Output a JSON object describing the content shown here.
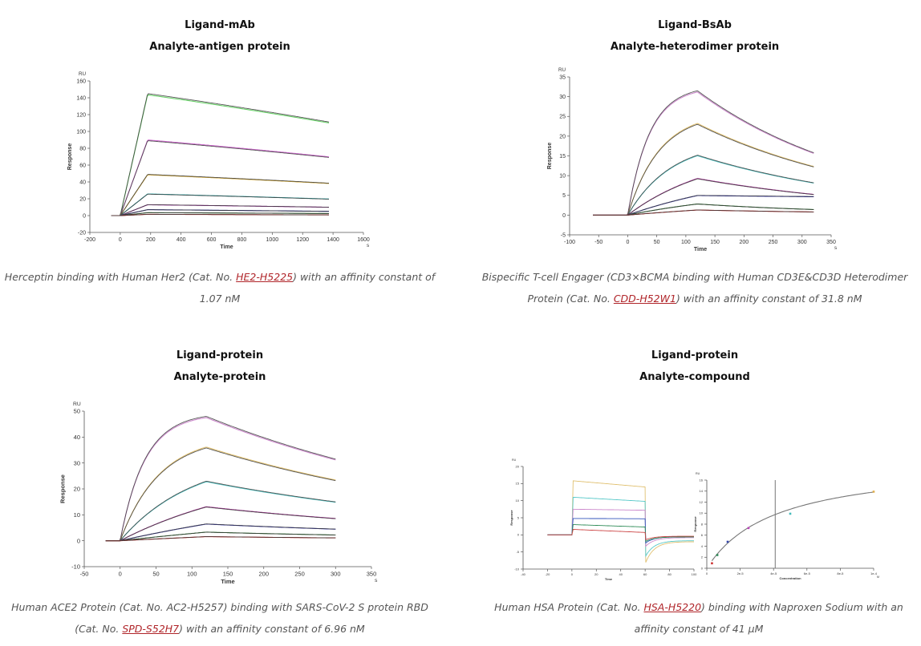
{
  "panels": [
    {
      "title_line1": "Ligand-mAb",
      "title_line2": "Analyte-antigen protein",
      "caption": {
        "before": "Herceptin binding with Human Her2 (Cat. No. ",
        "link": "HE2-H5225",
        "after": ") with an affinity constant of 1.07 nM"
      }
    },
    {
      "title_line1": "Ligand-BsAb",
      "title_line2": "Analyte-heterodimer protein",
      "caption": {
        "before": "Bispecific T-cell Engager (CD3×BCMA binding with Human CD3E&CD3D Heterodimer Protein (Cat. No. ",
        "link": "CDD-H52W1",
        "after": ") with an affinity constant of 31.8 nM"
      }
    },
    {
      "title_line1": "Ligand-protein",
      "title_line2": "Analyte-protein",
      "caption": {
        "before": "Human ACE2 Protein (Cat. No. AC2-H5257) binding with SARS-CoV-2 S protein RBD (Cat. No. ",
        "link": "SPD-S52H7",
        "after": ") with an affinity constant of 6.96 nM"
      }
    },
    {
      "title_line1": "Ligand-protein",
      "title_line2": "Analyte-compound",
      "caption": {
        "before": "Human HSA Protein (Cat. No. ",
        "link": "HSA-H5220",
        "after": ") binding with Naproxen Sodium with an affinity constant of 41 μM"
      }
    }
  ],
  "chart_data": [
    {
      "type": "line",
      "title": "Ligand-mAb / Analyte-antigen protein",
      "xlabel": "Time",
      "xunit": "s",
      "ylabel": "Response",
      "yunit": "RU",
      "xlim": [
        -200,
        1600
      ],
      "ylim": [
        -20,
        160
      ],
      "xticks": [
        -200,
        0,
        200,
        400,
        600,
        800,
        1000,
        1200,
        1400,
        1600
      ],
      "yticks": [
        -20,
        0,
        20,
        40,
        60,
        80,
        100,
        120,
        140,
        160
      ],
      "grid": false,
      "model": {
        "t_start": -60,
        "t_inject": 0,
        "t_dissoc": 180,
        "t_end": 1380
      },
      "series": [
        {
          "name": "c1",
          "color": "#6bd36b",
          "peak": 145,
          "end": 111
        },
        {
          "name": "c2",
          "color": "#cc66cc",
          "peak": 89,
          "end": 69
        },
        {
          "name": "c3",
          "color": "#d4a830",
          "peak": 49,
          "end": 38.5
        },
        {
          "name": "c4",
          "color": "#33aaaa",
          "peak": 25.5,
          "end": 19.5
        },
        {
          "name": "c5",
          "color": "#aa33aa",
          "peak": 13,
          "end": 10
        },
        {
          "name": "c6",
          "color": "#333399",
          "peak": 7,
          "end": 5
        },
        {
          "name": "c7",
          "color": "#2e7d32",
          "peak": 3.5,
          "end": 2.5
        },
        {
          "name": "c8",
          "color": "#cc2222",
          "peak": 1.5,
          "end": 0.8
        }
      ]
    },
    {
      "type": "line",
      "title": "Ligand-BsAb / Analyte-heterodimer protein",
      "xlabel": "Time",
      "xunit": "s",
      "ylabel": "Response",
      "yunit": "RU",
      "xlim": [
        -100,
        350
      ],
      "ylim": [
        -5,
        35
      ],
      "xticks": [
        -100,
        -50,
        0,
        50,
        100,
        150,
        200,
        250,
        300,
        350
      ],
      "yticks": [
        -5,
        0,
        5,
        10,
        15,
        20,
        25,
        30,
        35
      ],
      "grid": false,
      "model": {
        "t_start": -60,
        "t_inject": 0,
        "t_dissoc": 120,
        "t_end": 320
      },
      "series": [
        {
          "name": "c1",
          "color": "#cc88cc",
          "peak": 31.5,
          "end": 15.8,
          "curv": 3.2
        },
        {
          "name": "c2",
          "color": "#e0c070",
          "peak": 23,
          "end": 12.2,
          "curv": 2.2
        },
        {
          "name": "c3",
          "color": "#55c8c8",
          "peak": 15.2,
          "end": 8.2,
          "curv": 1.6
        },
        {
          "name": "c4",
          "color": "#aa3399",
          "peak": 9.2,
          "end": 5.2,
          "curv": 0.8
        },
        {
          "name": "c5",
          "color": "#3333aa",
          "peak": 5,
          "end": 4.7,
          "curv": 0.5
        },
        {
          "name": "c6",
          "color": "#2e7d32",
          "peak": 2.8,
          "end": 1.4,
          "curv": 0.5
        },
        {
          "name": "c7",
          "color": "#cc2222",
          "peak": 1.3,
          "end": 0.8,
          "curv": 0.3
        }
      ]
    },
    {
      "type": "line",
      "title": "Ligand-protein / Analyte-protein",
      "xlabel": "Time",
      "xunit": "s",
      "ylabel": "Response",
      "yunit": "RU",
      "xlim": [
        -50,
        350
      ],
      "ylim": [
        -10,
        50
      ],
      "xticks": [
        -50,
        0,
        50,
        100,
        150,
        200,
        250,
        300,
        350
      ],
      "yticks": [
        -10,
        0,
        10,
        20,
        30,
        40,
        50
      ],
      "grid": false,
      "model": {
        "t_start": -20,
        "t_inject": 0,
        "t_dissoc": 120,
        "t_end": 300
      },
      "series": [
        {
          "name": "c1",
          "color": "#cc88cc",
          "peak": 48,
          "end": 31.5,
          "curv": 3.5
        },
        {
          "name": "c2",
          "color": "#e0c070",
          "peak": 35.8,
          "end": 23.2,
          "curv": 2.2
        },
        {
          "name": "c3",
          "color": "#55c8c8",
          "peak": 23,
          "end": 15,
          "curv": 1.2
        },
        {
          "name": "c4",
          "color": "#aa3399",
          "peak": 13,
          "end": 8.5,
          "curv": 0.6
        },
        {
          "name": "c5",
          "color": "#3333aa",
          "peak": 6.5,
          "end": 4.5,
          "curv": 0.3
        },
        {
          "name": "c6",
          "color": "#2e7d32",
          "peak": 3.3,
          "end": 2.2,
          "curv": 0.2
        },
        {
          "name": "c7",
          "color": "#cc2222",
          "peak": 1.6,
          "end": 1.1,
          "curv": 0.1
        }
      ]
    },
    {
      "type": "line",
      "title": "Ligand-protein / Analyte-compound (sensorgram)",
      "xlabel": "Time",
      "ylabel": "Response",
      "yunit": "RU",
      "xlim": [
        -40,
        100
      ],
      "ylim": [
        -10,
        20
      ],
      "xticks": [
        -40,
        -20,
        0,
        20,
        40,
        60,
        80,
        100
      ],
      "yticks": [
        -10,
        -5,
        0,
        5,
        10,
        15,
        20
      ],
      "grid": false,
      "model": {
        "t_start": -20,
        "t_inject": 0,
        "t_dissoc": 60,
        "t_end": 100
      },
      "series": [
        {
          "name": "c1",
          "color": "#e0c070",
          "peak": 15.8,
          "end": 14,
          "dip": -8.5,
          "tail": -2
        },
        {
          "name": "c2",
          "color": "#55c8c8",
          "peak": 11,
          "end": 9.8,
          "dip": -6.5,
          "tail": -1.7
        },
        {
          "name": "c3",
          "color": "#cc88cc",
          "peak": 7.5,
          "end": 7.2,
          "dip": -3.5,
          "tail": -0.8
        },
        {
          "name": "c4",
          "color": "#3355bb",
          "peak": 4.8,
          "end": 4.7,
          "dip": -2.5,
          "tail": -0.5
        },
        {
          "name": "c5",
          "color": "#2e8b57",
          "peak": 3,
          "end": 2.3,
          "dip": -2,
          "tail": -0.6
        },
        {
          "name": "c6",
          "color": "#cc4444",
          "peak": 1.6,
          "end": 0.7,
          "dip": -1.5,
          "tail": -0.4
        }
      ]
    },
    {
      "type": "scatter",
      "title": "Ligand-protein / Analyte-compound (steady-state affinity)",
      "xlabel": "Concentration",
      "xunit": "M",
      "ylabel": "Response",
      "yunit": "RU",
      "xlim": [
        0,
        0.0001
      ],
      "ylim": [
        0,
        16
      ],
      "xticks": [
        0,
        2e-05,
        4e-05,
        6e-05,
        8e-05,
        0.0001
      ],
      "xticklabels": [
        "0",
        "2e-5",
        "4e-5",
        "6e-5",
        "8e-5",
        "1e-4"
      ],
      "yticks": [
        0,
        2,
        4,
        6,
        8,
        10,
        12,
        14,
        16
      ],
      "grid": false,
      "kd_marker": 4.1e-05,
      "fit": {
        "rmax": 19.5,
        "kd": 4.1e-05
      },
      "points": [
        {
          "x": 3.1e-06,
          "y": 0.9,
          "color": "#cc3333"
        },
        {
          "x": 6.3e-06,
          "y": 2.4,
          "color": "#2e8b57"
        },
        {
          "x": 1.25e-05,
          "y": 4.8,
          "color": "#3344aa"
        },
        {
          "x": 2.5e-05,
          "y": 7.3,
          "color": "#bb44bb"
        },
        {
          "x": 5e-05,
          "y": 9.9,
          "color": "#44bbbb"
        },
        {
          "x": 0.0001,
          "y": 13.9,
          "color": "#e0b050"
        }
      ]
    }
  ]
}
